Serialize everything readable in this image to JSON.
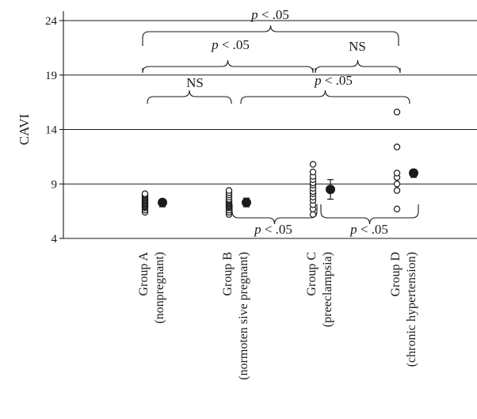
{
  "chart_data": {
    "type": "scatter",
    "title": "",
    "xlabel": "",
    "ylabel": "CAVI",
    "ylim": [
      4,
      24
    ],
    "yticks": [
      4,
      9,
      14,
      19,
      24
    ],
    "grid": true,
    "categories": [
      [
        "Group A",
        "(nonpregnant)"
      ],
      [
        "Group B",
        "(normoten sive pregnant)"
      ],
      [
        "Group C",
        "(preeclampsia)"
      ],
      [
        "Group D",
        "(chronic hypertension)"
      ]
    ],
    "series": [
      {
        "category": "Group A",
        "points": [
          6.4,
          6.6,
          6.8,
          6.9,
          7.0,
          7.1,
          7.2,
          7.3,
          7.4,
          7.5,
          7.6,
          7.7,
          7.8,
          7.9,
          8.0,
          8.1
        ],
        "mean": 7.3,
        "err_low": 6.9,
        "err_high": 7.6
      },
      {
        "category": "Group B",
        "points": [
          6.2,
          6.4,
          6.6,
          6.8,
          6.9,
          7.0,
          7.1,
          7.2,
          7.3,
          7.4,
          7.5,
          7.6,
          7.8,
          8.0,
          8.2,
          8.4
        ],
        "mean": 7.3,
        "err_low": 6.9,
        "err_high": 7.7
      },
      {
        "category": "Group C",
        "points": [
          6.2,
          6.7,
          7.1,
          7.5,
          7.8,
          8.1,
          8.3,
          8.6,
          8.9,
          9.1,
          9.4,
          9.7,
          10.1,
          10.8
        ],
        "mean": 8.5,
        "err_low": 7.6,
        "err_high": 9.4
      },
      {
        "category": "Group D",
        "points": [
          6.7,
          8.4,
          9.0,
          9.6,
          10.0,
          12.4,
          15.6
        ],
        "mean": 10.0,
        "err_low": 9.6,
        "err_high": 10.3
      }
    ],
    "annotations": {
      "top_outer": "p < .05",
      "upper_left": "p < .05",
      "upper_right": "NS",
      "mid_left": "NS",
      "mid_right": "p < .05",
      "low_left": "p < .05",
      "low_right": "p < .05"
    }
  }
}
